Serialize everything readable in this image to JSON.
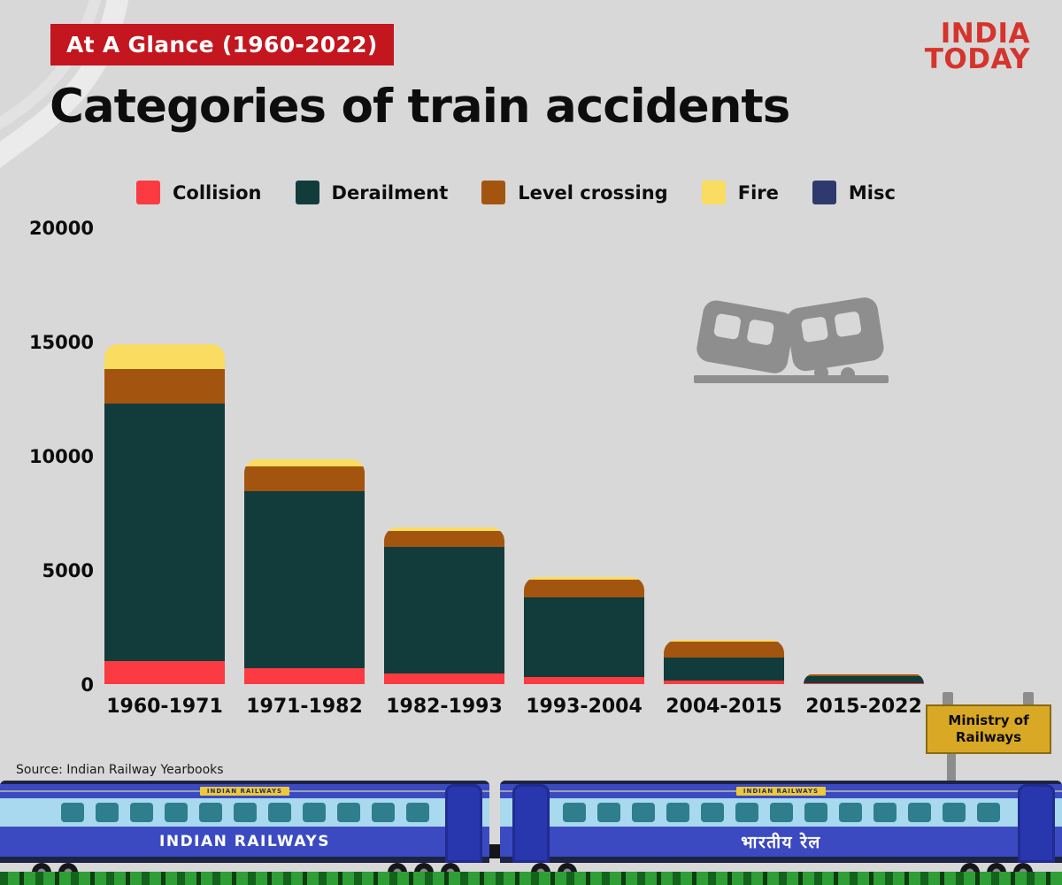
{
  "badge_label": "At A Glance (1960-2022)",
  "title": "Categories of train accidents",
  "logo": {
    "line1": "INDIA",
    "line2": "TODAY"
  },
  "colors": {
    "background": "#d8d8d8",
    "badge_red": "#c3161f",
    "logo_red": "#d5342c",
    "collision": "#fb3a41",
    "derailment": "#123c3b",
    "level_crossing": "#a3550f",
    "fire": "#f9dc60",
    "misc": "#2e3a6e",
    "sign_yellow": "#d9a825",
    "train_blue": "#3b4ac1",
    "train_window_band": "#a9d9ee"
  },
  "legend": [
    {
      "label": "Collision",
      "color": "#fb3a41"
    },
    {
      "label": "Derailment",
      "color": "#123c3b"
    },
    {
      "label": "Level crossing",
      "color": "#a3550f"
    },
    {
      "label": "Fire",
      "color": "#f9dc60"
    },
    {
      "label": "Misc",
      "color": "#2e3a6e"
    }
  ],
  "chart_data": {
    "type": "bar",
    "stacked": true,
    "title": "Categories of train accidents",
    "subtitle": "At A Glance (1960-2022)",
    "categories": [
      "1960-1971",
      "1971-1982",
      "1982-1993",
      "1993-2004",
      "2004-2015",
      "2015-2022"
    ],
    "series": [
      {
        "name": "Collision",
        "color": "#fb3a41",
        "values": [
          1000,
          700,
          450,
          300,
          150,
          40
        ]
      },
      {
        "name": "Derailment",
        "color": "#123c3b",
        "values": [
          11300,
          7750,
          5550,
          3500,
          1000,
          330
        ]
      },
      {
        "name": "Level crossing",
        "color": "#a3550f",
        "values": [
          1500,
          1100,
          700,
          780,
          700,
          60
        ]
      },
      {
        "name": "Fire",
        "color": "#f9dc60",
        "values": [
          1100,
          300,
          180,
          100,
          80,
          20
        ]
      },
      {
        "name": "Misc",
        "color": "#2e3a6e",
        "values": [
          0,
          0,
          0,
          0,
          0,
          0
        ]
      }
    ],
    "totals_estimated": [
      14900,
      9850,
      6880,
      4680,
      1930,
      450
    ],
    "xlabel": "",
    "ylabel": "",
    "ylim": [
      0,
      20000
    ],
    "yticks": [
      "20000",
      "15000",
      "10000",
      "5000",
      "0"
    ],
    "grid": false,
    "legend_position": "top"
  },
  "source": "Source: Indian Railway Yearbooks",
  "sign_text": "Ministry of Railways",
  "trains": [
    {
      "plate": "INDIAN RAILWAYS",
      "label": "INDIAN RAILWAYS"
    },
    {
      "plate": "INDIAN RAILWAYS",
      "label": "भारतीय रेल"
    }
  ]
}
